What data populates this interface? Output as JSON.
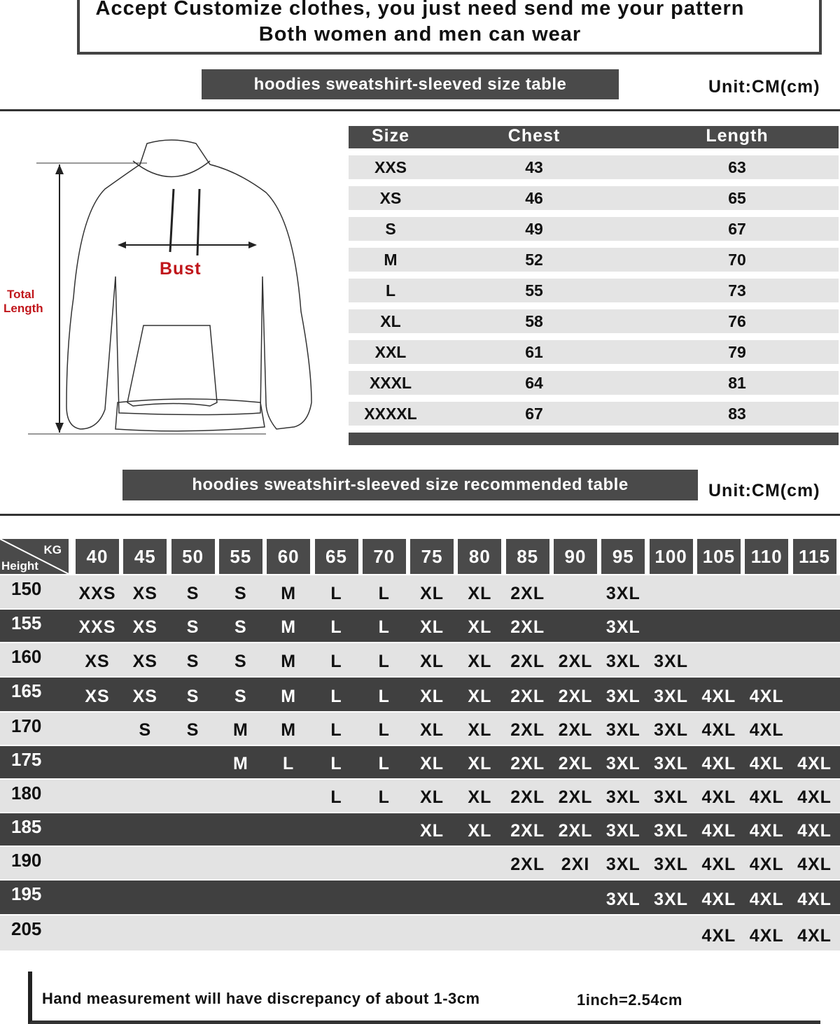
{
  "header": {
    "line1": "Accept Customize clothes, you just need send me your pattern",
    "line2": "Both women and men can wear"
  },
  "size_table": {
    "banner": "hoodies sweatshirt-sleeved size  table",
    "unit": "Unit:CM(cm)",
    "columns": [
      "Size",
      "Chest",
      "Length"
    ],
    "rows": [
      [
        "XXS",
        "43",
        "63"
      ],
      [
        "XS",
        "46",
        "65"
      ],
      [
        "S",
        "49",
        "67"
      ],
      [
        "M",
        "52",
        "70"
      ],
      [
        "L",
        "55",
        "73"
      ],
      [
        "XL",
        "58",
        "76"
      ],
      [
        "XXL",
        "61",
        "79"
      ],
      [
        "XXXL",
        "64",
        "81"
      ],
      [
        "XXXXL",
        "67",
        "83"
      ]
    ]
  },
  "diagram": {
    "bust_label": "Bust",
    "length_label_1": "Total",
    "length_label_2": "Length",
    "bust_color": "#c0161b"
  },
  "rec_table": {
    "banner": "hoodies sweatshirt-sleeved size recommended table",
    "unit": "Unit:CM(cm)",
    "corner_top": "KG",
    "corner_bottom": "Height",
    "weights": [
      "40",
      "45",
      "50",
      "55",
      "60",
      "65",
      "70",
      "75",
      "80",
      "85",
      "90",
      "95",
      "100",
      "105",
      "110",
      "115"
    ],
    "rows": [
      {
        "height": "150",
        "shade": "light",
        "sizes": [
          "XXS",
          "XS",
          "S",
          "S",
          "M",
          "L",
          "L",
          "XL",
          "XL",
          "2XL",
          "",
          "3XL",
          "",
          "",
          "",
          ""
        ]
      },
      {
        "height": "155",
        "shade": "dark",
        "sizes": [
          "XXS",
          "XS",
          "S",
          "S",
          "M",
          "L",
          "L",
          "XL",
          "XL",
          "2XL",
          "",
          "3XL",
          "",
          "",
          "",
          ""
        ]
      },
      {
        "height": "160",
        "shade": "light",
        "sizes": [
          "XS",
          "XS",
          "S",
          "S",
          "M",
          "L",
          "L",
          "XL",
          "XL",
          "2XL",
          "2XL",
          "3XL",
          "3XL",
          "",
          "",
          ""
        ]
      },
      {
        "height": "165",
        "shade": "dark",
        "sizes": [
          "XS",
          "XS",
          "S",
          "S",
          "M",
          "L",
          "L",
          "XL",
          "XL",
          "2XL",
          "2XL",
          "3XL",
          "3XL",
          "4XL",
          "4XL",
          ""
        ]
      },
      {
        "height": "170",
        "shade": "light",
        "sizes": [
          "",
          "S",
          "S",
          "M",
          "M",
          "L",
          "L",
          "XL",
          "XL",
          "2XL",
          "2XL",
          "3XL",
          "3XL",
          "4XL",
          "4XL",
          ""
        ]
      },
      {
        "height": "175",
        "shade": "dark",
        "sizes": [
          "",
          "",
          "",
          "M",
          "L",
          "L",
          "L",
          "XL",
          "XL",
          "2XL",
          "2XL",
          "3XL",
          "3XL",
          "4XL",
          "4XL",
          "4XL"
        ]
      },
      {
        "height": "180",
        "shade": "light",
        "sizes": [
          "",
          "",
          "",
          "",
          "",
          "L",
          "L",
          "XL",
          "XL",
          "2XL",
          "2XL",
          "3XL",
          "3XL",
          "4XL",
          "4XL",
          "4XL"
        ]
      },
      {
        "height": "185",
        "shade": "dark",
        "sizes": [
          "",
          "",
          "",
          "",
          "",
          "",
          "",
          "XL",
          "XL",
          "2XL",
          "2XL",
          "3XL",
          "3XL",
          "4XL",
          "4XL",
          "4XL"
        ]
      },
      {
        "height": "190",
        "shade": "light",
        "sizes": [
          "",
          "",
          "",
          "",
          "",
          "",
          "",
          "",
          "",
          "2XL",
          "2XI",
          "3XL",
          "3XL",
          "4XL",
          "4XL",
          "4XL"
        ]
      },
      {
        "height": "195",
        "shade": "dark",
        "sizes": [
          "",
          "",
          "",
          "",
          "",
          "",
          "",
          "",
          "",
          "",
          "",
          "3XL",
          "3XL",
          "4XL",
          "4XL",
          "4XL"
        ]
      },
      {
        "height": "205",
        "shade": "light",
        "sizes": [
          "",
          "",
          "",
          "",
          "",
          "",
          "",
          "",
          "",
          "",
          "",
          "",
          "",
          "4XL",
          "4XL",
          "4XL"
        ]
      }
    ]
  },
  "footer": {
    "note": "Hand measurement will have discrepancy of about  1-3cm",
    "conversion": "1inch=2.54cm"
  }
}
